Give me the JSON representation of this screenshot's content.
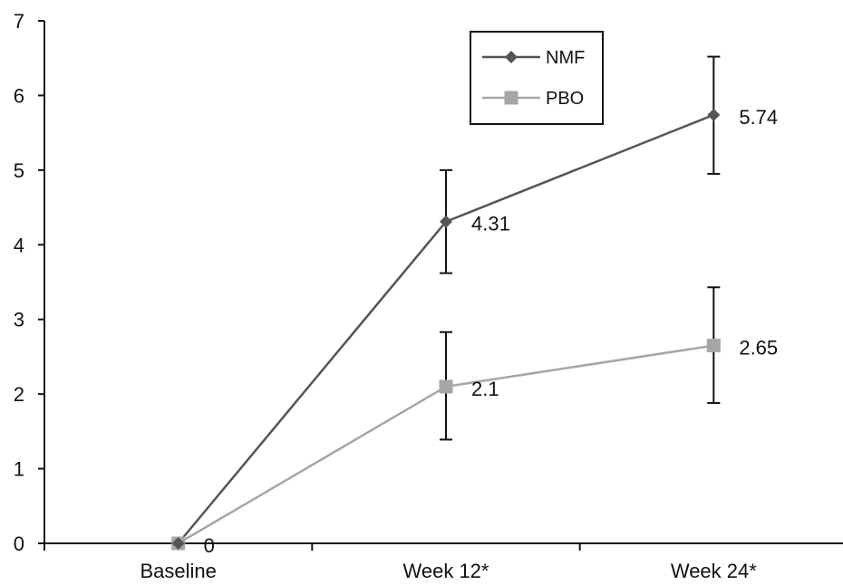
{
  "chart_data": {
    "type": "line",
    "categories": [
      "Baseline",
      "Week 12*",
      "Week 24*"
    ],
    "ylim": [
      0,
      7
    ],
    "yticks": [
      0,
      1,
      2,
      3,
      4,
      5,
      6,
      7
    ],
    "ytick_labels": [
      "0",
      "1",
      "2",
      "3",
      "4",
      "5",
      "6",
      "7"
    ],
    "grid": false,
    "legend": "top-center",
    "series": [
      {
        "name": "NMF",
        "marker": "diamond",
        "color": "#555555",
        "values": [
          0,
          4.31,
          5.74
        ],
        "error_low": [
          null,
          3.62,
          4.95
        ],
        "error_high": [
          null,
          5.0,
          6.52
        ],
        "labels": [
          "",
          "4.31",
          "5.74"
        ]
      },
      {
        "name": "PBO",
        "marker": "square",
        "color": "#a6a6a6",
        "values": [
          0,
          2.1,
          2.65
        ],
        "error_low": [
          null,
          1.39,
          1.88
        ],
        "error_high": [
          null,
          2.83,
          3.43
        ],
        "labels": [
          "0",
          "2.1",
          "2.65"
        ]
      }
    ]
  }
}
